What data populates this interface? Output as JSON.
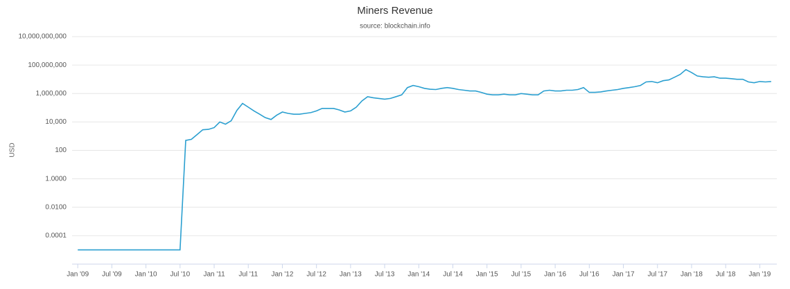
{
  "chart_data": {
    "type": "line",
    "title": "Miners Revenue",
    "subtitle": "source: blockchain.info",
    "y_label": "USD",
    "log_scale": true,
    "grid": true,
    "color": "#2a9fd0",
    "xlim": [
      "2008-12",
      "2019-04"
    ],
    "ylim": [
      1e-06,
      10000000000
    ],
    "yticks": [
      {
        "value": 0.0001,
        "label": "0.0001"
      },
      {
        "value": 0.01,
        "label": "0.0100"
      },
      {
        "value": 1,
        "label": "1.0000"
      },
      100,
      {
        "value": 10000,
        "label": "10,000"
      },
      {
        "value": 1000000,
        "label": "1,000,000"
      },
      {
        "value": 100000000,
        "label": "100,000,000"
      },
      {
        "value": 10000000000,
        "label": "10,000,000,000"
      }
    ],
    "xticks": [
      {
        "value": "2009-01",
        "label": "Jan '09"
      },
      {
        "value": "2009-07",
        "label": "Jul '09"
      },
      {
        "value": "2010-01",
        "label": "Jan '10"
      },
      {
        "value": "2010-07",
        "label": "Jul '10"
      },
      {
        "value": "2011-01",
        "label": "Jan '11"
      },
      {
        "value": "2011-07",
        "label": "Jul '11"
      },
      {
        "value": "2012-01",
        "label": "Jan '12"
      },
      {
        "value": "2012-07",
        "label": "Jul '12"
      },
      {
        "value": "2013-01",
        "label": "Jan '13"
      },
      {
        "value": "2013-07",
        "label": "Jul '13"
      },
      {
        "value": "2014-01",
        "label": "Jan '14"
      },
      {
        "value": "2014-07",
        "label": "Jul '14"
      },
      {
        "value": "2015-01",
        "label": "Jan '15"
      },
      {
        "value": "2015-07",
        "label": "Jul '15"
      },
      {
        "value": "2016-01",
        "label": "Jan '16"
      },
      {
        "value": "2016-07",
        "label": "Jul '16"
      },
      {
        "value": "2017-01",
        "label": "Jan '17"
      },
      {
        "value": "2017-07",
        "label": "Jul '17"
      },
      {
        "value": "2018-01",
        "label": "Jan '18"
      },
      {
        "value": "2018-07",
        "label": "Jul '18"
      },
      {
        "value": "2019-01",
        "label": "Jan '19"
      }
    ],
    "x": [
      "2009-01",
      "2009-02",
      "2009-03",
      "2009-04",
      "2009-05",
      "2009-06",
      "2009-07",
      "2009-08",
      "2009-09",
      "2009-10",
      "2009-11",
      "2009-12",
      "2010-01",
      "2010-02",
      "2010-03",
      "2010-04",
      "2010-05",
      "2010-06",
      "2010-07",
      "2010-08",
      "2010-09",
      "2010-10",
      "2010-11",
      "2010-12",
      "2011-01",
      "2011-02",
      "2011-03",
      "2011-04",
      "2011-05",
      "2011-06",
      "2011-07",
      "2011-08",
      "2011-09",
      "2011-10",
      "2011-11",
      "2011-12",
      "2012-01",
      "2012-02",
      "2012-03",
      "2012-04",
      "2012-05",
      "2012-06",
      "2012-07",
      "2012-08",
      "2012-09",
      "2012-10",
      "2012-11",
      "2012-12",
      "2013-01",
      "2013-02",
      "2013-03",
      "2013-04",
      "2013-05",
      "2013-06",
      "2013-07",
      "2013-08",
      "2013-09",
      "2013-10",
      "2013-11",
      "2013-12",
      "2014-01",
      "2014-02",
      "2014-03",
      "2014-04",
      "2014-05",
      "2014-06",
      "2014-07",
      "2014-08",
      "2014-09",
      "2014-10",
      "2014-11",
      "2014-12",
      "2015-01",
      "2015-02",
      "2015-03",
      "2015-04",
      "2015-05",
      "2015-06",
      "2015-07",
      "2015-08",
      "2015-09",
      "2015-10",
      "2015-11",
      "2015-12",
      "2016-01",
      "2016-02",
      "2016-03",
      "2016-04",
      "2016-05",
      "2016-06",
      "2016-07",
      "2016-08",
      "2016-09",
      "2016-10",
      "2016-11",
      "2016-12",
      "2017-01",
      "2017-02",
      "2017-03",
      "2017-04",
      "2017-05",
      "2017-06",
      "2017-07",
      "2017-08",
      "2017-09",
      "2017-10",
      "2017-11",
      "2017-12",
      "2018-01",
      "2018-02",
      "2018-03",
      "2018-04",
      "2018-05",
      "2018-06",
      "2018-07",
      "2018-08",
      "2018-09",
      "2018-10",
      "2018-11",
      "2018-12",
      "2019-01",
      "2019-02",
      "2019-03"
    ],
    "values": [
      1e-05,
      1e-05,
      1e-05,
      1e-05,
      1e-05,
      1e-05,
      1e-05,
      1e-05,
      1e-05,
      1e-05,
      1e-05,
      1e-05,
      1e-05,
      1e-05,
      1e-05,
      1e-05,
      1e-05,
      1e-05,
      1e-05,
      500,
      600,
      1300,
      2800,
      3000,
      4000,
      10000,
      7000,
      12000,
      65000,
      200000,
      110000,
      60000,
      35000,
      20000,
      15000,
      30000,
      50000,
      40000,
      35000,
      35000,
      40000,
      45000,
      60000,
      90000,
      90000,
      90000,
      70000,
      50000,
      60000,
      110000,
      300000,
      600000,
      500000,
      450000,
      400000,
      450000,
      600000,
      800000,
      2600000,
      3700000,
      3000000,
      2300000,
      2000000,
      1900000,
      2300000,
      2600000,
      2300000,
      1900000,
      1700000,
      1500000,
      1500000,
      1200000,
      900000,
      800000,
      800000,
      900000,
      800000,
      800000,
      1000000,
      900000,
      800000,
      800000,
      1500000,
      1700000,
      1500000,
      1500000,
      1700000,
      1700000,
      1900000,
      2600000,
      1200000,
      1200000,
      1300000,
      1500000,
      1700000,
      1900000,
      2300000,
      2600000,
      3000000,
      3700000,
      6500000,
      7000000,
      5700000,
      8000000,
      9000000,
      14000000,
      22000000,
      48000000,
      30000000,
      17000000,
      15000000,
      14000000,
      15000000,
      12000000,
      12000000,
      11000000,
      10000000,
      10000000,
      6500000,
      5700000,
      7000000,
      6500000,
      7000000
    ]
  }
}
